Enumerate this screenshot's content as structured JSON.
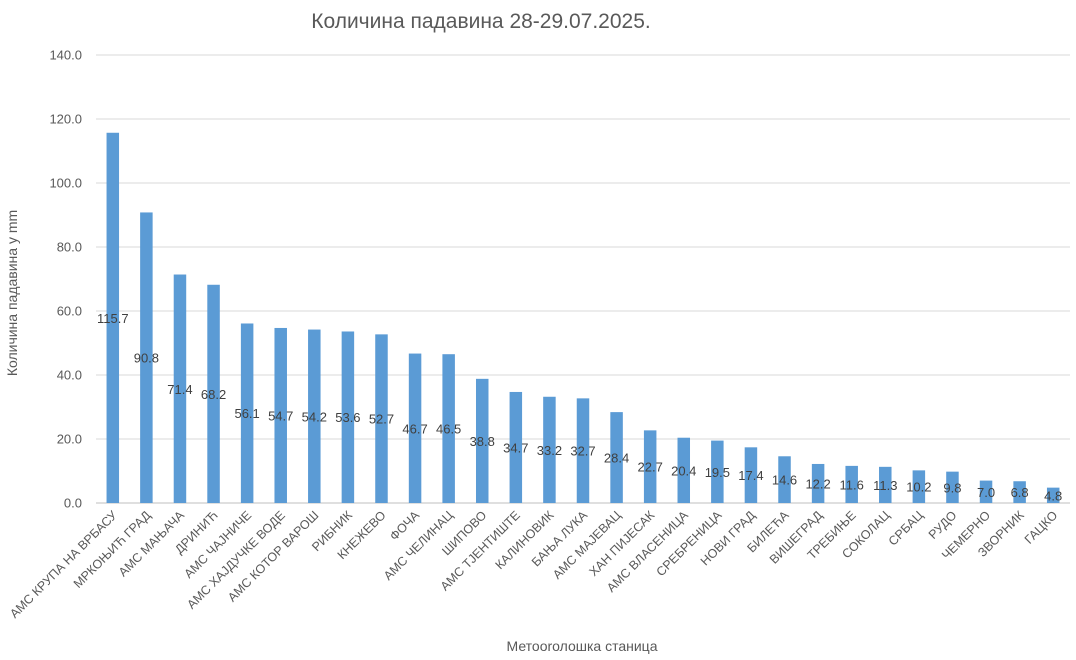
{
  "chart_data": {
    "type": "bar",
    "title": "Количина падавина 28-29.07.2025.",
    "xlabel": "Метоorолошка станица",
    "ylabel": "Количина падавина у mm",
    "ylim": [
      0,
      140
    ],
    "yticks": [
      "0.0",
      "20.0",
      "40.0",
      "60.0",
      "80.0",
      "100.0",
      "120.0",
      "140.0"
    ],
    "grid": true,
    "bar_color": "#5b9bd5",
    "categories": [
      "АМС КРУПА НА ВРБАСУ",
      "МРКОЊИЋ ГРАД",
      "АМС МАЊАЧА",
      "ДРИНИЋ",
      "АМС ЧАЈНИЧЕ",
      "АМС ХАЈДУЧКЕ ВОДЕ",
      "АМС КОТОР ВАРОШ",
      "РИБНИК",
      "КНЕЖЕВО",
      "ФОЧА",
      "АМС ЧЕЛИНАЦ",
      "ШИПОВО",
      "АМС ТЈЕНТИШТЕ",
      "КАЛИНОВИК",
      "БАЊА ЛУКА",
      "АМС МАЈЕВАЦ",
      "ХАН ПИЈЕСАК",
      "АМС ВЛАСЕНИЦА",
      "СРЕБРЕНИЦА",
      "НОВИ ГРАД",
      "БИЛЕЋА",
      "ВИШЕГРАД",
      "ТРЕБИЊЕ",
      "СОКОЛАЦ",
      "СРБАЦ",
      "РУДО",
      "ЧЕМЕРНО",
      "ЗВОРНИК",
      "ГАЦКО"
    ],
    "values": [
      115.7,
      90.8,
      71.4,
      68.2,
      56.1,
      54.7,
      54.2,
      53.6,
      52.7,
      46.7,
      46.5,
      38.8,
      34.7,
      33.2,
      32.7,
      28.4,
      22.7,
      20.4,
      19.5,
      17.4,
      14.6,
      12.2,
      11.6,
      11.3,
      10.2,
      9.8,
      7.0,
      6.8,
      4.8
    ],
    "labels": [
      "115.7",
      "90.8",
      "71.4",
      "68.2",
      "56.1",
      "54.7",
      "54.2",
      "53.6",
      "52.7",
      "46.7",
      "46.5",
      "38.8",
      "34.7",
      "33.2",
      "32.7",
      "28.4",
      "22.7",
      "20.4",
      "19.5",
      "17.4",
      "14.6",
      "12.2",
      "11.6",
      "11.3",
      "10.2",
      "9.8",
      "7.0",
      "6.8",
      "4.8"
    ]
  }
}
